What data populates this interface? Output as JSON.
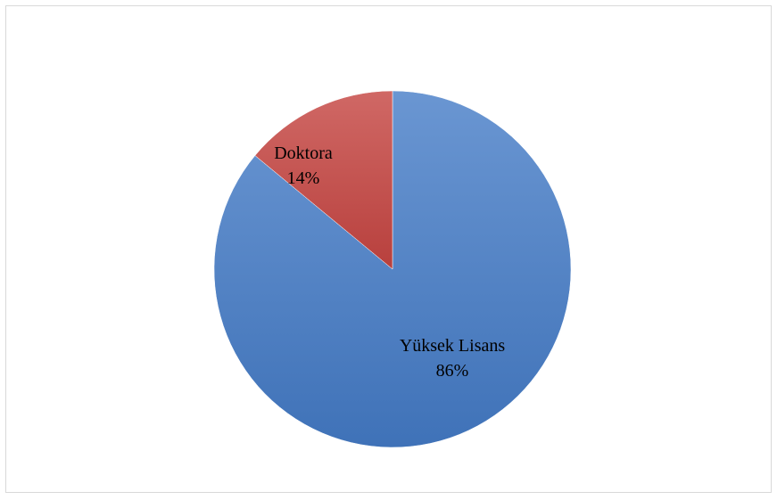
{
  "chart_data": {
    "type": "pie",
    "slices": [
      {
        "label": "Yüksek Lisans",
        "percent_label": "86%",
        "value": 86,
        "color": "#4f81bd"
      },
      {
        "label": "Doktora",
        "percent_label": "14%",
        "value": 14,
        "color": "#c0504d"
      }
    ],
    "start": "12 o'clock",
    "direction": "clockwise",
    "legend": "none",
    "data_labels": "inside"
  }
}
